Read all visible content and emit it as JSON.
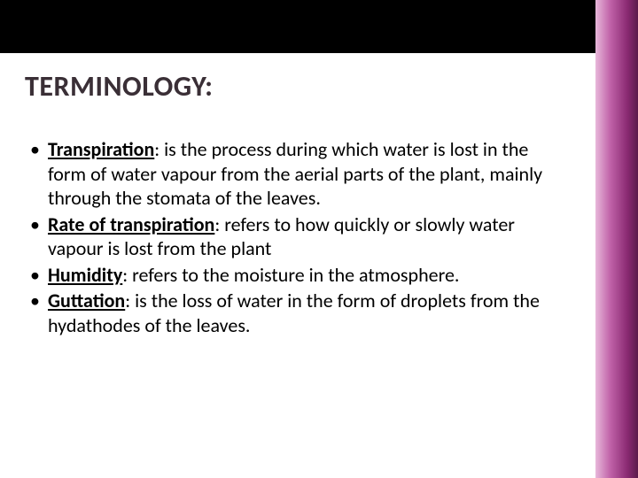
{
  "slide": {
    "title": "TERMINOLOGY:",
    "title_color": "#3a2f36",
    "title_fontsize": 32,
    "top_bar_color": "#000000",
    "accent_gradient": [
      "#e8b8da",
      "#c062a8",
      "#8a2a72",
      "#5a1a4a"
    ],
    "background_color": "#ffffff",
    "body_fontsize": 22,
    "body_color": "#000000",
    "bullets": [
      {
        "term": "Transpiration",
        "definition": ": is the process during which water is lost in the form of water vapour from the aerial parts of the plant, mainly through the stomata of the leaves."
      },
      {
        "term": "Rate of transpiration",
        "definition": ": refers to how quickly or slowly water vapour is lost from the plant"
      },
      {
        "term": "Humidity",
        "definition": ": refers to the moisture in the atmosphere."
      },
      {
        "term": "Guttation",
        "definition": ":  is the loss of water in the form of droplets from the hydathodes of the leaves."
      }
    ]
  }
}
